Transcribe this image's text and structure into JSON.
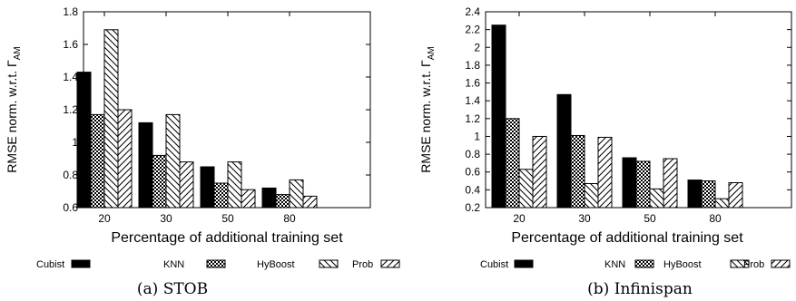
{
  "chart_data": [
    {
      "type": "bar",
      "caption": "(a) STOB",
      "xlabel": "Percentage of additional training set",
      "ylabel_text": "RMSE norm. w.r.t. Γ",
      "ylabel_sub": "AM",
      "categories": [
        "20",
        "30",
        "50",
        "80"
      ],
      "ylim": [
        0.6,
        1.8
      ],
      "yticks": [
        "0.6",
        "0.8",
        "1",
        "1.2",
        "1.4",
        "1.6",
        "1.8"
      ],
      "series": [
        {
          "name": "Cubist",
          "pattern": "solid",
          "values": [
            1.43,
            1.12,
            0.85,
            0.72
          ]
        },
        {
          "name": "KNN",
          "pattern": "checker",
          "values": [
            1.17,
            0.92,
            0.75,
            0.68
          ]
        },
        {
          "name": "HyBoost",
          "pattern": "back-hatch",
          "values": [
            1.69,
            1.17,
            0.88,
            0.77
          ]
        },
        {
          "name": "Prob",
          "pattern": "fwd-hatch",
          "values": [
            1.2,
            0.88,
            0.71,
            0.67
          ]
        }
      ],
      "grid": false,
      "legend_position": "bottom"
    },
    {
      "type": "bar",
      "caption": "(b) Infinispan",
      "xlabel": "Percentage of additional training set",
      "ylabel_text": "RMSE norm. w.r.t. Γ",
      "ylabel_sub": "AM",
      "categories": [
        "20",
        "30",
        "50",
        "80"
      ],
      "ylim": [
        0.2,
        2.4
      ],
      "yticks": [
        "0.2",
        "0.4",
        "0.6",
        "0.8",
        "1",
        "1.2",
        "1.4",
        "1.6",
        "1.8",
        "2",
        "2.2",
        "2.4"
      ],
      "series": [
        {
          "name": "Cubist",
          "pattern": "solid",
          "values": [
            2.25,
            1.47,
            0.76,
            0.51
          ]
        },
        {
          "name": "KNN",
          "pattern": "checker",
          "values": [
            1.2,
            1.01,
            0.72,
            0.5
          ]
        },
        {
          "name": "HyBoost",
          "pattern": "back-hatch",
          "values": [
            0.63,
            0.47,
            0.41,
            0.3
          ]
        },
        {
          "name": "Prob",
          "pattern": "fwd-hatch",
          "values": [
            1.0,
            0.99,
            0.75,
            0.48
          ]
        }
      ],
      "grid": false,
      "legend_position": "bottom"
    }
  ]
}
